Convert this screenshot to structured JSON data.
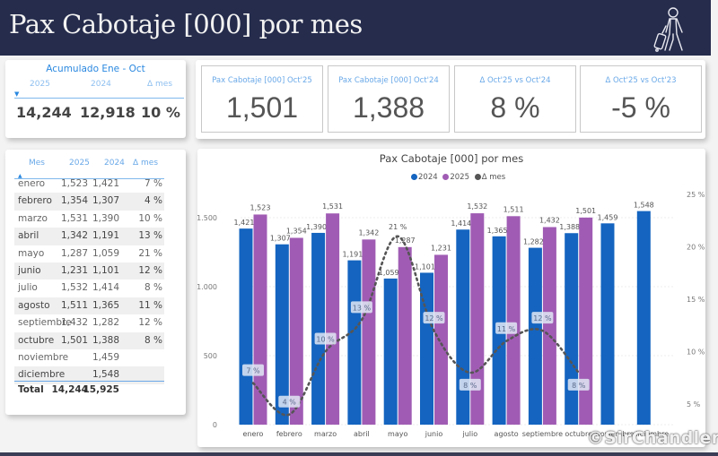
{
  "header": {
    "title": "Pax Cabotaje [000] por mes",
    "icon": "traveler-with-suitcase-icon"
  },
  "accumulated": {
    "title": "Acumulado Ene - Oct",
    "columns": [
      "2025",
      "2024",
      "Δ mes"
    ],
    "values": [
      "14,244",
      "12,918",
      "10 %"
    ]
  },
  "kpis": [
    {
      "label": "Pax Cabotaje [000] Oct'25",
      "value": "1,501"
    },
    {
      "label": "Pax Cabotaje [000] Oct'24",
      "value": "1,388"
    },
    {
      "label": "Δ Oct'25 vs Oct'24",
      "value": "8 %"
    },
    {
      "label": "Δ Oct'25 vs Oct'23",
      "value": "-5 %"
    }
  ],
  "table": {
    "columns": [
      "Mes",
      "2025",
      "2024",
      "Δ mes"
    ],
    "rows": [
      {
        "mes": "enero",
        "y2025": "1,523",
        "y2024": "1,421",
        "delta": "7 %"
      },
      {
        "mes": "febrero",
        "y2025": "1,354",
        "y2024": "1,307",
        "delta": "4 %"
      },
      {
        "mes": "marzo",
        "y2025": "1,531",
        "y2024": "1,390",
        "delta": "10 %"
      },
      {
        "mes": "abril",
        "y2025": "1,342",
        "y2024": "1,191",
        "delta": "13 %"
      },
      {
        "mes": "mayo",
        "y2025": "1,287",
        "y2024": "1,059",
        "delta": "21 %"
      },
      {
        "mes": "junio",
        "y2025": "1,231",
        "y2024": "1,101",
        "delta": "12 %"
      },
      {
        "mes": "julio",
        "y2025": "1,532",
        "y2024": "1,414",
        "delta": "8 %"
      },
      {
        "mes": "agosto",
        "y2025": "1,511",
        "y2024": "1,365",
        "delta": "11 %"
      },
      {
        "mes": "septiembre",
        "y2025": "1,432",
        "y2024": "1,282",
        "delta": "12 %"
      },
      {
        "mes": "octubre",
        "y2025": "1,501",
        "y2024": "1,388",
        "delta": "8 %"
      },
      {
        "mes": "noviembre",
        "y2025": "",
        "y2024": "1,459",
        "delta": ""
      },
      {
        "mes": "diciembre",
        "y2025": "",
        "y2024": "1,548",
        "delta": ""
      }
    ],
    "total": {
      "label": "Total",
      "y2025": "14,244",
      "y2024": "15,925"
    }
  },
  "colors": {
    "header_bg": "#252c4c",
    "series_2024": "#1464c0",
    "series_2025": "#a05cb4",
    "series_delta": "#555555",
    "accent": "#2a88e0"
  },
  "watermark": "©SirChandler",
  "chart_data": {
    "type": "bar",
    "title": "Pax Cabotaje [000] por mes",
    "legend": [
      "2024",
      "2025",
      "Δ mes"
    ],
    "legend_position": "top-center",
    "categories": [
      "enero",
      "febrero",
      "marzo",
      "abril",
      "mayo",
      "junio",
      "julio",
      "agosto",
      "septiembre",
      "octubre",
      "noviembre",
      "diciembre"
    ],
    "series": [
      {
        "name": "2024",
        "type": "bar",
        "values": [
          1421,
          1307,
          1390,
          1191,
          1059,
          1101,
          1414,
          1365,
          1282,
          1388,
          1459,
          1548
        ]
      },
      {
        "name": "2025",
        "type": "bar",
        "values": [
          1523,
          1354,
          1531,
          1342,
          1287,
          1231,
          1532,
          1511,
          1432,
          1501,
          null,
          null
        ]
      },
      {
        "name": "Δ mes",
        "type": "line",
        "axis": "right",
        "values": [
          7,
          4,
          10,
          13,
          21,
          12,
          8,
          11,
          12,
          8,
          null,
          null
        ],
        "unit": "%"
      }
    ],
    "value_labels": {
      "2024": [
        "1,421",
        "1,307",
        "1,390",
        "1,191",
        "1,059",
        "1,101",
        "1,414",
        "1,365",
        "1,282",
        "1,388",
        "1,459",
        "1,548"
      ],
      "2025": [
        "1,523",
        "1,354",
        "1,531",
        "1,342",
        "1,287",
        "1,231",
        "1,532",
        "1,511",
        "1,432",
        "1,501",
        "",
        ""
      ],
      "delta": [
        "7 %",
        "4 %",
        "10 %",
        "13 %",
        "21 %",
        "12 %",
        "8 %",
        "11 %",
        "12 %",
        "8 %",
        "",
        ""
      ]
    },
    "y_left": {
      "ylim": [
        0,
        1500
      ],
      "ticks": [
        0,
        500,
        1000,
        1500
      ],
      "tick_labels": [
        "0",
        "500",
        "1.000",
        "1.500"
      ]
    },
    "y_right": {
      "ylim": [
        3,
        25
      ],
      "ticks": [
        5,
        10,
        15,
        20,
        25
      ],
      "tick_labels": [
        "5 %",
        "10 %",
        "15 %",
        "20 %",
        "25 %"
      ]
    },
    "xlabel": "",
    "ylabel": "",
    "grid": true
  }
}
